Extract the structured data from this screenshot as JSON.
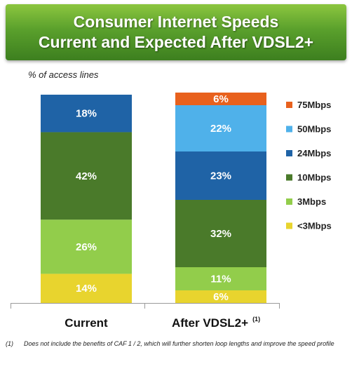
{
  "title": {
    "line1": "Consumer Internet Speeds",
    "line2": "Current and Expected After VDSL2+"
  },
  "axis_caption": "% of access lines",
  "footnote": {
    "marker": "(1)",
    "text": "Does not include the benefits of CAF 1 / 2, which will further shorten loop lengths and improve the speed profile"
  },
  "chart_data": {
    "type": "bar",
    "stacked": true,
    "ylabel": "% of access lines",
    "categories": [
      "Current",
      "After VDSL2+"
    ],
    "category_footnote_markers": [
      "",
      "(1)"
    ],
    "legend_position": "right",
    "series": [
      {
        "name": "<3Mbps",
        "color": "#e8d42e",
        "values": [
          14,
          6
        ],
        "labels": [
          "14%",
          "6%"
        ]
      },
      {
        "name": "3Mbps",
        "color": "#92cd4b",
        "values": [
          26,
          11
        ],
        "labels": [
          "26%",
          "11%"
        ]
      },
      {
        "name": "10Mbps",
        "color": "#4a7a2a",
        "values": [
          42,
          32
        ],
        "labels": [
          "42%",
          "32%"
        ]
      },
      {
        "name": "24Mbps",
        "color": "#1f63a6",
        "values": [
          18,
          23
        ],
        "labels": [
          "18%",
          "23%"
        ]
      },
      {
        "name": "50Mbps",
        "color": "#4fb1ea",
        "values": [
          0,
          22
        ],
        "labels": [
          "",
          "22%"
        ]
      },
      {
        "name": "75Mbps",
        "color": "#e8611d",
        "values": [
          0,
          6
        ],
        "labels": [
          "",
          "6%"
        ]
      }
    ],
    "ylim": [
      0,
      100
    ],
    "grid": false
  }
}
